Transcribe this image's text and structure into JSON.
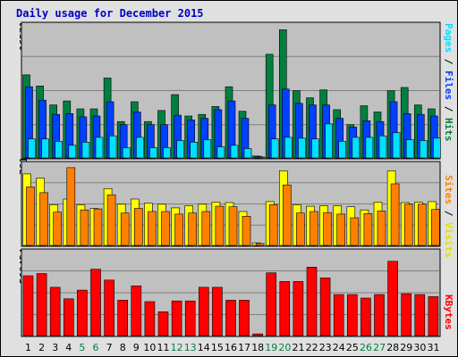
{
  "chart_data": [
    {
      "type": "bar",
      "title": "Daily usage for December 2015",
      "categories": [
        "1",
        "2",
        "3",
        "4",
        "5",
        "6",
        "7",
        "8",
        "9",
        "10",
        "11",
        "12",
        "13",
        "14",
        "15",
        "16",
        "17",
        "18",
        "19",
        "20",
        "21",
        "22",
        "23",
        "24",
        "25",
        "26",
        "27",
        "28",
        "29",
        "30",
        "31"
      ],
      "weekend_days": [
        "5",
        "6",
        "12",
        "13",
        "19",
        "20",
        "26",
        "27"
      ],
      "ymax_label": "16571",
      "ylim": [
        0,
        16571
      ],
      "right_label": {
        "pages": "Pages",
        "files": "Files",
        "hits": "Hits",
        "sep": " / "
      },
      "colors": {
        "hits": "#008040",
        "files": "#0040ff",
        "pages": "#00e0ff"
      },
      "series": [
        {
          "name": "Hits",
          "values": [
            10500,
            9100,
            6700,
            7200,
            6200,
            6200,
            10100,
            4600,
            7100,
            4600,
            6000,
            8000,
            5300,
            5500,
            6500,
            9000,
            5900,
            250,
            13100,
            16200,
            8500,
            7600,
            8600,
            6100,
            4200,
            6600,
            5800,
            8500,
            8900,
            6700,
            6200
          ]
        },
        {
          "name": "Files",
          "values": [
            9000,
            7300,
            5500,
            5600,
            5200,
            5300,
            7100,
            4200,
            5800,
            4200,
            4200,
            5400,
            4800,
            5000,
            6100,
            7200,
            5000,
            200,
            6700,
            8700,
            6900,
            6700,
            6700,
            5000,
            3900,
            4700,
            4600,
            7100,
            5600,
            5500,
            5300
          ]
        },
        {
          "name": "Pages",
          "values": [
            2400,
            2400,
            2100,
            1600,
            2000,
            2600,
            2800,
            1300,
            2600,
            1300,
            1300,
            2200,
            2000,
            2300,
            1400,
            1600,
            1200,
            60,
            2400,
            2600,
            2500,
            2400,
            4300,
            2100,
            2600,
            2600,
            2800,
            3200,
            2300,
            2200,
            2500
          ]
        }
      ]
    },
    {
      "type": "bar",
      "categories": [
        "1",
        "2",
        "3",
        "4",
        "5",
        "6",
        "7",
        "8",
        "9",
        "10",
        "11",
        "12",
        "13",
        "14",
        "15",
        "16",
        "17",
        "18",
        "19",
        "20",
        "21",
        "22",
        "23",
        "24",
        "25",
        "26",
        "27",
        "28",
        "29",
        "30",
        "31"
      ],
      "ymax_label": "761",
      "ylim": [
        0,
        761
      ],
      "right_label": {
        "sites": "Sites",
        "visits": "Visits",
        "sep": " / "
      },
      "colors": {
        "visits": "#ffff00",
        "sites": "#ff8000"
      },
      "series": [
        {
          "name": "Visits",
          "values": [
            685,
            645,
            390,
            445,
            390,
            355,
            545,
            395,
            445,
            405,
            395,
            360,
            380,
            395,
            415,
            410,
            325,
            25,
            420,
            715,
            390,
            375,
            380,
            380,
            370,
            340,
            415,
            715,
            410,
            415,
            420
          ]
        },
        {
          "name": "Sites",
          "values": [
            560,
            505,
            320,
            745,
            340,
            350,
            485,
            310,
            355,
            325,
            325,
            300,
            310,
            325,
            375,
            370,
            280,
            18,
            390,
            580,
            310,
            325,
            315,
            300,
            265,
            305,
            330,
            590,
            395,
            395,
            345
          ]
        }
      ]
    },
    {
      "type": "bar",
      "categories": [
        "1",
        "2",
        "3",
        "4",
        "5",
        "6",
        "7",
        "8",
        "9",
        "10",
        "11",
        "12",
        "13",
        "14",
        "15",
        "16",
        "17",
        "18",
        "19",
        "20",
        "21",
        "22",
        "23",
        "24",
        "25",
        "26",
        "27",
        "28",
        "29",
        "30",
        "31"
      ],
      "ymax_label": "569454",
      "ylim": [
        0,
        569454
      ],
      "right_label": {
        "kbytes": "KBytes"
      },
      "colors": {
        "kbytes": "#ff0000"
      },
      "series": [
        {
          "name": "KBytes",
          "values": [
            415000,
            430000,
            335000,
            255000,
            315000,
            460000,
            385000,
            245000,
            345000,
            235000,
            165000,
            240000,
            240000,
            335000,
            335000,
            245000,
            245000,
            12000,
            435000,
            375000,
            375000,
            475000,
            400000,
            285000,
            285000,
            260000,
            285000,
            515000,
            290000,
            285000,
            270000
          ]
        }
      ]
    }
  ]
}
